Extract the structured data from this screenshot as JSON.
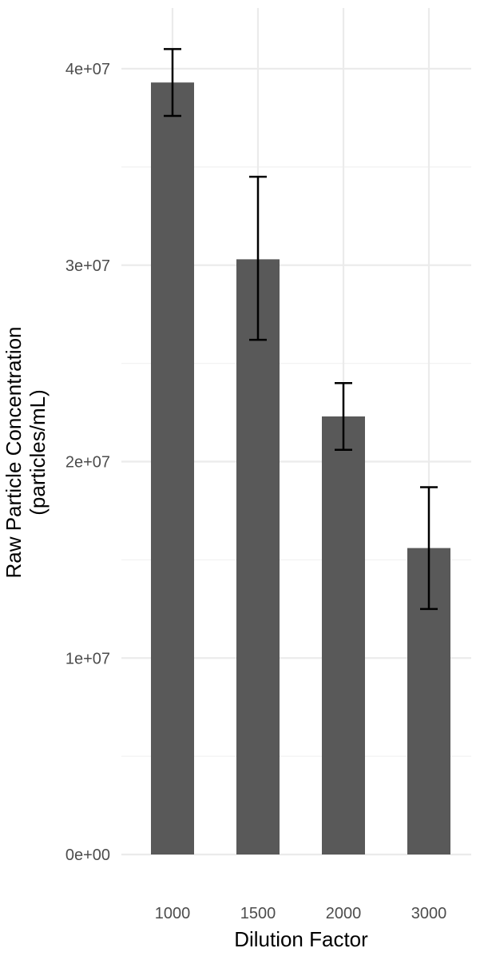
{
  "chart_data": {
    "type": "bar",
    "title": "",
    "xlabel": "Dilution Factor",
    "ylabel_lines": [
      "Raw Particle Concentration",
      "(particles/mL)"
    ],
    "categories": [
      "1000",
      "1500",
      "2000",
      "3000"
    ],
    "values": [
      39300000,
      30300000,
      22300000,
      15600000
    ],
    "error_upper": [
      41000000,
      34500000,
      24000000,
      18700000
    ],
    "error_lower": [
      37600000,
      26200000,
      20600000,
      12500000
    ],
    "ylim": [
      0,
      42000000
    ],
    "y_ticks": [
      0,
      10000000,
      20000000,
      30000000,
      40000000
    ],
    "y_tick_labels": [
      "0e+00",
      "1e+07",
      "2e+07",
      "3e+07",
      "4e+07"
    ],
    "y_minor_ticks": [
      5000000,
      15000000,
      25000000,
      35000000
    ],
    "grid": true,
    "legend": "none",
    "colors": {
      "bar": "#595959",
      "error_bar": "#000000",
      "grid_major": "#ebebeb",
      "grid_minor": "#f2f2f2"
    }
  }
}
